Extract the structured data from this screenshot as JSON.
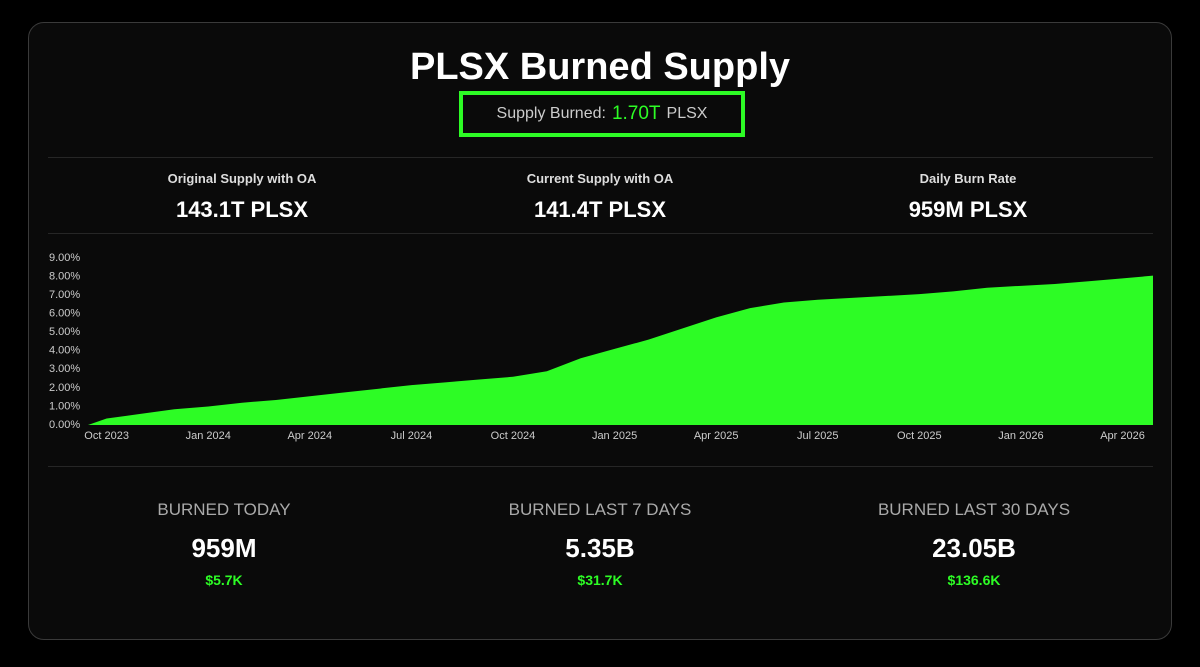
{
  "header": {
    "title": "PLSX Burned Supply",
    "supply_label": "Supply Burned:",
    "supply_value": "1.70T",
    "supply_unit": "PLSX"
  },
  "stats": [
    {
      "label": "Original Supply with OA",
      "value": "143.1T PLSX"
    },
    {
      "label": "Current Supply with OA",
      "value": "141.4T PLSX"
    },
    {
      "label": "Daily Burn Rate",
      "value": "959M PLSX"
    }
  ],
  "chart_data": {
    "type": "area",
    "color": "#2dfc25",
    "x": [
      "2023-09",
      "2023-10",
      "2023-11",
      "2023-12",
      "2024-01",
      "2024-02",
      "2024-03",
      "2024-04",
      "2024-05",
      "2024-06",
      "2024-07",
      "2024-08",
      "2024-09",
      "2024-10",
      "2024-11",
      "2024-12",
      "2025-01",
      "2025-02",
      "2025-03",
      "2025-04",
      "2025-05",
      "2025-06",
      "2025-07",
      "2025-08",
      "2025-09",
      "2025-10",
      "2025-11",
      "2025-12",
      "2026-01",
      "2026-02",
      "2026-03",
      "2026-04",
      "2026-05"
    ],
    "values": [
      0,
      0.35,
      0.6,
      0.85,
      1.0,
      1.2,
      1.35,
      1.55,
      1.75,
      1.95,
      2.15,
      2.3,
      2.45,
      2.6,
      2.9,
      3.6,
      4.1,
      4.6,
      5.2,
      5.8,
      6.3,
      6.6,
      6.75,
      6.85,
      6.95,
      7.05,
      7.2,
      7.4,
      7.5,
      7.6,
      7.75,
      7.9,
      8.05
    ],
    "xlim": [
      "2023-09",
      "2026-05"
    ],
    "xticks": [
      {
        "value": "2023-10",
        "label": "Oct 2023"
      },
      {
        "value": "2024-01",
        "label": "Jan 2024"
      },
      {
        "value": "2024-04",
        "label": "Apr 2024"
      },
      {
        "value": "2024-07",
        "label": "Jul 2024"
      },
      {
        "value": "2024-10",
        "label": "Oct 2024"
      },
      {
        "value": "2025-01",
        "label": "Jan 2025"
      },
      {
        "value": "2025-04",
        "label": "Apr 2025"
      },
      {
        "value": "2025-07",
        "label": "Jul 2025"
      },
      {
        "value": "2025-10",
        "label": "Oct 2025"
      },
      {
        "value": "2026-01",
        "label": "Jan 2026"
      },
      {
        "value": "2026-04",
        "label": "Apr 2026"
      }
    ],
    "ylim": [
      0,
      9
    ],
    "yticks": [
      {
        "value": 0,
        "label": "0.00%"
      },
      {
        "value": 1,
        "label": "1.00%"
      },
      {
        "value": 2,
        "label": "2.00%"
      },
      {
        "value": 3,
        "label": "3.00%"
      },
      {
        "value": 4,
        "label": "4.00%"
      },
      {
        "value": 5,
        "label": "5.00%"
      },
      {
        "value": 6,
        "label": "6.00%"
      },
      {
        "value": 7,
        "label": "7.00%"
      },
      {
        "value": 8,
        "label": "8.00%"
      },
      {
        "value": 9,
        "label": "9.00%"
      }
    ]
  },
  "burns": [
    {
      "label": "BURNED TODAY",
      "amount": "959M",
      "usd": "$5.7K"
    },
    {
      "label": "BURNED LAST 7 DAYS",
      "amount": "5.35B",
      "usd": "$31.7K"
    },
    {
      "label": "BURNED LAST 30 DAYS",
      "amount": "23.05B",
      "usd": "$136.6K"
    }
  ]
}
